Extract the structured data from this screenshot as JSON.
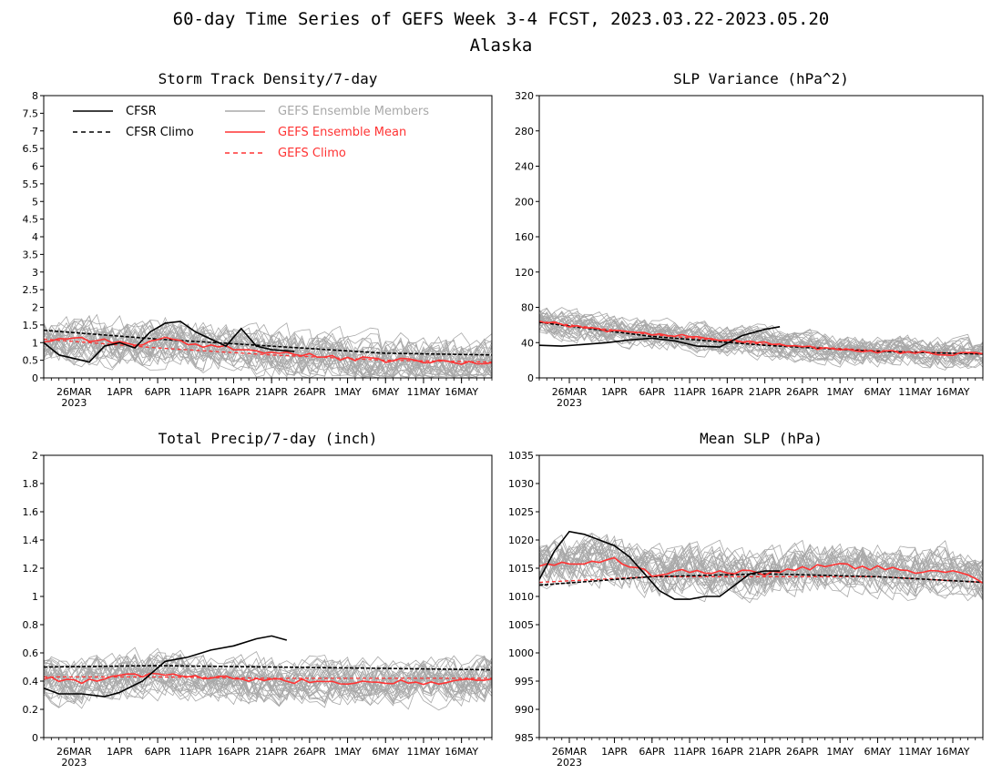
{
  "figure": {
    "title": "60-day Time Series of GEFS Week 3-4 FCST, 2023.03.22-2023.05.20",
    "subtitle": "Alaska"
  },
  "colors": {
    "cfsr": "#000000",
    "members": "#a8a8a8",
    "ens_mean": "#ff3333",
    "gefs_climo": "#ff3333"
  },
  "x_axis": {
    "date_start": "2023-03-22",
    "date_end": "2023-05-20",
    "tick_labels": [
      "26MAR",
      "1APR",
      "6APR",
      "11APR",
      "16APR",
      "21APR",
      "26APR",
      "1MAY",
      "6MAY",
      "11MAY",
      "16MAY"
    ],
    "tick_dates": [
      "2023-03-26",
      "2023-04-01",
      "2023-04-06",
      "2023-04-11",
      "2023-04-16",
      "2023-04-21",
      "2023-04-26",
      "2023-05-01",
      "2023-05-06",
      "2023-05-11",
      "2023-05-16"
    ],
    "year_label": "2023"
  },
  "legend": {
    "cfsr": "CFSR",
    "cfsr_climo": "CFSR Climo",
    "members": "GEFS Ensemble Members",
    "ens_mean": "GEFS Ensemble Mean",
    "gefs_climo": "GEFS Climo"
  },
  "chart_data": [
    {
      "type": "line",
      "title": "Storm Track Density/7-day",
      "ylim": [
        0,
        8
      ],
      "yticks": [
        0,
        0.5,
        1,
        1.5,
        2,
        2.5,
        3,
        3.5,
        4,
        4.5,
        5,
        5.5,
        6,
        6.5,
        7,
        7.5,
        8
      ],
      "grid": false,
      "legend_position": "top",
      "members_count": 30,
      "members_spread": 0.55,
      "cfsr": {
        "dates": [
          "2023-03-22",
          "2023-03-24",
          "2023-03-26",
          "2023-03-28",
          "2023-03-30",
          "2023-04-01",
          "2023-04-03",
          "2023-04-05",
          "2023-04-07",
          "2023-04-09",
          "2023-04-11",
          "2023-04-13",
          "2023-04-15",
          "2023-04-17",
          "2023-04-19",
          "2023-04-21",
          "2023-04-24"
        ],
        "values": [
          1.0,
          0.65,
          0.55,
          0.45,
          0.9,
          1.0,
          0.85,
          1.3,
          1.55,
          1.6,
          1.3,
          1.1,
          0.9,
          1.4,
          0.9,
          0.8,
          0.75
        ]
      },
      "cfsr_climo": {
        "dates": [
          "2023-03-22",
          "2023-04-06",
          "2023-04-21",
          "2023-05-06",
          "2023-05-20"
        ],
        "values": [
          1.35,
          1.1,
          0.9,
          0.7,
          0.65
        ]
      },
      "ens_mean": {
        "dates": [
          "2023-03-22",
          "2023-03-26",
          "2023-03-30",
          "2023-04-03",
          "2023-04-07",
          "2023-04-11",
          "2023-04-15",
          "2023-04-19",
          "2023-04-23",
          "2023-04-27",
          "2023-05-01",
          "2023-05-05",
          "2023-05-09",
          "2023-05-13",
          "2023-05-17",
          "2023-05-20"
        ],
        "values": [
          1.05,
          1.15,
          1.05,
          0.95,
          1.1,
          0.9,
          0.9,
          0.75,
          0.7,
          0.6,
          0.55,
          0.5,
          0.5,
          0.45,
          0.4,
          0.45
        ]
      },
      "gefs_climo": {
        "dates": [
          "2023-03-22",
          "2023-04-06",
          "2023-04-21",
          "2023-05-06",
          "2023-05-20"
        ],
        "values": [
          1.1,
          0.85,
          0.65,
          0.5,
          0.45
        ]
      }
    },
    {
      "type": "line",
      "title": "SLP Variance (hPa^2)",
      "ylim": [
        0,
        320
      ],
      "yticks": [
        0,
        40,
        80,
        120,
        160,
        200,
        240,
        280,
        320
      ],
      "grid": false,
      "members_count": 30,
      "members_spread": 14,
      "cfsr": {
        "dates": [
          "2023-03-22",
          "2023-03-25",
          "2023-03-28",
          "2023-03-31",
          "2023-04-03",
          "2023-04-06",
          "2023-04-09",
          "2023-04-12",
          "2023-04-15",
          "2023-04-18",
          "2023-04-21",
          "2023-04-23"
        ],
        "values": [
          37,
          36,
          38,
          40,
          43,
          45,
          42,
          36,
          35,
          48,
          55,
          58
        ]
      },
      "cfsr_climo": {
        "dates": [
          "2023-03-22",
          "2023-04-06",
          "2023-04-21",
          "2023-05-06",
          "2023-05-20"
        ],
        "values": [
          63,
          47,
          37,
          30,
          27
        ]
      },
      "ens_mean": {
        "dates": [
          "2023-03-22",
          "2023-03-27",
          "2023-04-01",
          "2023-04-06",
          "2023-04-11",
          "2023-04-16",
          "2023-04-21",
          "2023-04-26",
          "2023-05-01",
          "2023-05-06",
          "2023-05-11",
          "2023-05-16",
          "2023-05-20"
        ],
        "values": [
          65,
          58,
          53,
          50,
          47,
          42,
          40,
          35,
          32,
          30,
          29,
          27,
          28
        ]
      },
      "gefs_climo": {
        "dates": [
          "2023-03-22",
          "2023-04-06",
          "2023-04-21",
          "2023-05-06",
          "2023-05-20"
        ],
        "values": [
          64,
          49,
          38,
          31,
          27
        ]
      }
    },
    {
      "type": "line",
      "title": "Total Precip/7-day (inch)",
      "ylim": [
        0,
        2
      ],
      "yticks": [
        0,
        0.2,
        0.4,
        0.6,
        0.8,
        1,
        1.2,
        1.4,
        1.6,
        1.8,
        2
      ],
      "grid": false,
      "members_count": 30,
      "members_spread": 0.13,
      "cfsr": {
        "dates": [
          "2023-03-22",
          "2023-03-24",
          "2023-03-27",
          "2023-03-30",
          "2023-04-01",
          "2023-04-04",
          "2023-04-07",
          "2023-04-10",
          "2023-04-13",
          "2023-04-16",
          "2023-04-19",
          "2023-04-21",
          "2023-04-23"
        ],
        "values": [
          0.35,
          0.31,
          0.31,
          0.29,
          0.32,
          0.4,
          0.54,
          0.57,
          0.62,
          0.65,
          0.7,
          0.72,
          0.69
        ]
      },
      "cfsr_climo": {
        "dates": [
          "2023-03-22",
          "2023-04-06",
          "2023-04-21",
          "2023-05-06",
          "2023-05-20"
        ],
        "values": [
          0.5,
          0.51,
          0.5,
          0.49,
          0.48
        ]
      },
      "ens_mean": {
        "dates": [
          "2023-03-22",
          "2023-03-27",
          "2023-04-01",
          "2023-04-06",
          "2023-04-11",
          "2023-04-16",
          "2023-04-21",
          "2023-04-26",
          "2023-05-01",
          "2023-05-06",
          "2023-05-11",
          "2023-05-16",
          "2023-05-20"
        ],
        "values": [
          0.42,
          0.4,
          0.43,
          0.45,
          0.43,
          0.42,
          0.4,
          0.4,
          0.39,
          0.4,
          0.39,
          0.4,
          0.42
        ]
      },
      "gefs_climo": {
        "dates": [
          "2023-03-22",
          "2023-04-06",
          "2023-04-21",
          "2023-05-06",
          "2023-05-20"
        ],
        "values": [
          0.43,
          0.43,
          0.42,
          0.42,
          0.42
        ]
      }
    },
    {
      "type": "line",
      "title": "Mean SLP (hPa)",
      "ylim": [
        985,
        1035
      ],
      "yticks": [
        985,
        990,
        995,
        1000,
        1005,
        1010,
        1015,
        1020,
        1025,
        1030,
        1035
      ],
      "grid": false,
      "members_count": 30,
      "members_spread": 3.5,
      "cfsr": {
        "dates": [
          "2023-03-22",
          "2023-03-24",
          "2023-03-26",
          "2023-03-28",
          "2023-03-30",
          "2023-04-01",
          "2023-04-03",
          "2023-04-05",
          "2023-04-07",
          "2023-04-09",
          "2023-04-11",
          "2023-04-13",
          "2023-04-15",
          "2023-04-17",
          "2023-04-19",
          "2023-04-21",
          "2023-04-23"
        ],
        "values": [
          1013,
          1018,
          1021.5,
          1021,
          1020,
          1019,
          1017,
          1014,
          1011,
          1009.5,
          1009.5,
          1010,
          1010,
          1012,
          1014,
          1014.5,
          1014.5
        ]
      },
      "cfsr_climo": {
        "dates": [
          "2023-03-22",
          "2023-04-06",
          "2023-04-21",
          "2023-05-06",
          "2023-05-20"
        ],
        "values": [
          1012,
          1013.5,
          1014,
          1013.5,
          1012.5
        ]
      },
      "ens_mean": {
        "dates": [
          "2023-03-22",
          "2023-03-27",
          "2023-04-01",
          "2023-04-06",
          "2023-04-11",
          "2023-04-16",
          "2023-04-21",
          "2023-04-26",
          "2023-05-01",
          "2023-05-06",
          "2023-05-11",
          "2023-05-16",
          "2023-05-20"
        ],
        "values": [
          1015.5,
          1016,
          1016.5,
          1014,
          1014.5,
          1014.5,
          1014,
          1015,
          1015.5,
          1015,
          1014.5,
          1014.5,
          1012.5
        ]
      },
      "gefs_climo": {
        "dates": [
          "2023-03-22",
          "2023-04-06",
          "2023-04-21",
          "2023-05-06",
          "2023-05-20"
        ],
        "values": [
          1012.5,
          1013.5,
          1013.5,
          1013.5,
          1012.5
        ]
      }
    }
  ]
}
